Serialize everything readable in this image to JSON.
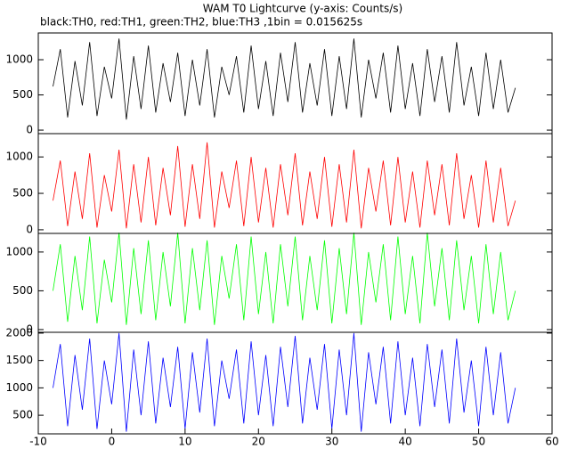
{
  "title": "WAM T0 Lightcurve (y-axis: Counts/s)",
  "subtitle": "black:TH0, red:TH1, green:TH2, blue:TH3 ,1bin = 0.015625s",
  "chart_data": [
    {
      "type": "line",
      "xlim": [
        -10,
        60
      ],
      "ylim": [
        -50,
        1380
      ],
      "yticks": [
        0,
        500,
        1000
      ],
      "x": [
        -8,
        -7,
        -6,
        -5,
        -4,
        -3,
        -2,
        -1,
        0,
        1,
        2,
        3,
        4,
        5,
        6,
        7,
        8,
        9,
        10,
        11,
        12,
        13,
        14,
        15,
        16,
        17,
        18,
        19,
        20,
        21,
        22,
        23,
        24,
        25,
        26,
        27,
        28,
        29,
        30,
        31,
        32,
        33,
        34,
        35,
        36,
        37,
        38,
        39,
        40,
        41,
        42,
        43,
        44,
        45,
        46,
        47,
        48,
        49,
        50,
        51,
        52,
        53,
        54,
        55
      ],
      "series": [
        {
          "color": "#000000",
          "values": [
            620,
            1150,
            180,
            980,
            350,
            1250,
            200,
            900,
            450,
            1300,
            150,
            1050,
            300,
            1200,
            250,
            950,
            400,
            1100,
            200,
            1000,
            350,
            1150,
            180,
            900,
            500,
            1050,
            250,
            1200,
            300,
            980,
            200,
            1100,
            400,
            1250,
            250,
            950,
            350,
            1150,
            200,
            1050,
            300,
            1300,
            180,
            1000,
            450,
            1100,
            250,
            1200,
            300,
            950,
            200,
            1150,
            400,
            1050,
            250,
            1250,
            350,
            900,
            200,
            1100,
            300,
            1000,
            250,
            600
          ]
        }
      ]
    },
    {
      "type": "line",
      "xlim": [
        -10,
        60
      ],
      "ylim": [
        -50,
        1320
      ],
      "yticks": [
        0,
        500,
        1000
      ],
      "x": [
        -8,
        -7,
        -6,
        -5,
        -4,
        -3,
        -2,
        -1,
        0,
        1,
        2,
        3,
        4,
        5,
        6,
        7,
        8,
        9,
        10,
        11,
        12,
        13,
        14,
        15,
        16,
        17,
        18,
        19,
        20,
        21,
        22,
        23,
        24,
        25,
        26,
        27,
        28,
        29,
        30,
        31,
        32,
        33,
        34,
        35,
        36,
        37,
        38,
        39,
        40,
        41,
        42,
        43,
        44,
        45,
        46,
        47,
        48,
        49,
        50,
        51,
        52,
        53,
        54,
        55
      ],
      "series": [
        {
          "color": "#ff0000",
          "values": [
            400,
            950,
            50,
            800,
            150,
            1050,
            30,
            750,
            250,
            1100,
            20,
            900,
            100,
            1000,
            60,
            850,
            200,
            1150,
            40,
            900,
            150,
            1200,
            30,
            800,
            300,
            950,
            50,
            1000,
            100,
            850,
            30,
            900,
            200,
            1050,
            60,
            800,
            150,
            1000,
            40,
            900,
            100,
            1100,
            20,
            850,
            250,
            950,
            60,
            1000,
            100,
            800,
            30,
            950,
            200,
            900,
            60,
            1050,
            150,
            750,
            30,
            950,
            100,
            850,
            50,
            400
          ]
        }
      ]
    },
    {
      "type": "line",
      "xlim": [
        -10,
        60
      ],
      "ylim": [
        -35,
        1240
      ],
      "yticks": [
        0,
        500,
        1000
      ],
      "x": [
        -8,
        -7,
        -6,
        -5,
        -4,
        -3,
        -2,
        -1,
        0,
        1,
        2,
        3,
        4,
        5,
        6,
        7,
        8,
        9,
        10,
        11,
        12,
        13,
        14,
        15,
        16,
        17,
        18,
        19,
        20,
        21,
        22,
        23,
        24,
        25,
        26,
        27,
        28,
        29,
        30,
        31,
        32,
        33,
        34,
        35,
        36,
        37,
        38,
        39,
        40,
        41,
        42,
        43,
        44,
        45,
        46,
        47,
        48,
        49,
        50,
        51,
        52,
        53,
        54,
        55
      ],
      "series": [
        {
          "color": "#00ff00",
          "values": [
            500,
            1100,
            100,
            950,
            250,
            1200,
            80,
            900,
            350,
            1250,
            60,
            1050,
            200,
            1150,
            120,
            1000,
            300,
            1250,
            80,
            1050,
            250,
            1150,
            60,
            950,
            400,
            1100,
            120,
            1200,
            200,
            1000,
            80,
            1100,
            300,
            1200,
            120,
            950,
            250,
            1150,
            80,
            1050,
            200,
            1250,
            60,
            1000,
            350,
            1100,
            120,
            1200,
            200,
            950,
            80,
            1250,
            300,
            1050,
            120,
            1150,
            250,
            950,
            80,
            1100,
            200,
            1000,
            120,
            500
          ]
        }
      ]
    },
    {
      "type": "line",
      "xlim": [
        -10,
        60
      ],
      "ylim": [
        160,
        2015
      ],
      "yticks": [
        500,
        1000,
        1500,
        2000
      ],
      "xticks": [
        -10,
        0,
        10,
        20,
        30,
        40,
        50,
        60
      ],
      "x": [
        -8,
        -7,
        -6,
        -5,
        -4,
        -3,
        -2,
        -1,
        0,
        1,
        2,
        3,
        4,
        5,
        6,
        7,
        8,
        9,
        10,
        11,
        12,
        13,
        14,
        15,
        16,
        17,
        18,
        19,
        20,
        21,
        22,
        23,
        24,
        25,
        26,
        27,
        28,
        29,
        30,
        31,
        32,
        33,
        34,
        35,
        36,
        37,
        38,
        39,
        40,
        41,
        42,
        43,
        44,
        45,
        46,
        47,
        48,
        49,
        50,
        51,
        52,
        53,
        54,
        55
      ],
      "series": [
        {
          "color": "#0000ff",
          "values": [
            1000,
            1800,
            300,
            1600,
            600,
            1900,
            250,
            1500,
            700,
            2000,
            200,
            1700,
            500,
            1850,
            350,
            1550,
            650,
            1750,
            250,
            1650,
            550,
            1900,
            300,
            1500,
            800,
            1700,
            350,
            1850,
            500,
            1600,
            300,
            1750,
            650,
            1950,
            350,
            1550,
            600,
            1800,
            250,
            1700,
            500,
            2000,
            200,
            1650,
            700,
            1750,
            350,
            1850,
            500,
            1550,
            300,
            1800,
            650,
            1700,
            350,
            1900,
            550,
            1500,
            300,
            1750,
            500,
            1650,
            350,
            1000
          ]
        }
      ]
    }
  ]
}
